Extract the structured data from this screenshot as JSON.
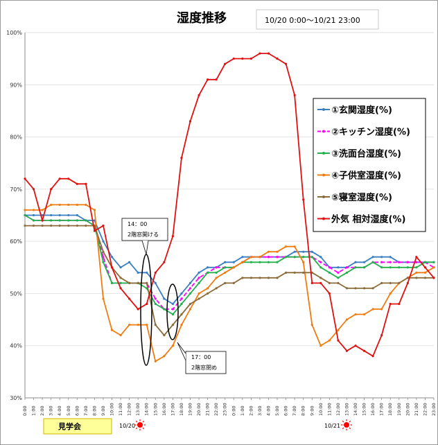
{
  "chart_data": {
    "type": "line",
    "title": "湿度推移",
    "subtitle": "10/20 0:00～10/21 23:00",
    "ylim": [
      30,
      100
    ],
    "yticks": [
      "30%",
      "40%",
      "50%",
      "60%",
      "70%",
      "80%",
      "90%",
      "100%"
    ],
    "x": [
      "0:00",
      "1:00",
      "2:00",
      "3:00",
      "4:00",
      "5:00",
      "6:00",
      "7:00",
      "8:00",
      "9:00",
      "10:00",
      "11:00",
      "12:00",
      "13:00",
      "14:00",
      "15:00",
      "16:00",
      "17:00",
      "18:00",
      "19:00",
      "20:00",
      "21:00",
      "22:00",
      "23:00",
      "0:00",
      "1:00",
      "2:00",
      "3:00",
      "4:00",
      "5:00",
      "6:00",
      "7:00",
      "8:00",
      "9:00",
      "10:00",
      "11:00",
      "12:00",
      "13:00",
      "14:00",
      "15:00",
      "16:00",
      "17:00",
      "18:00",
      "19:00",
      "20:00",
      "21:00",
      "22:00",
      "23:00"
    ],
    "legend_position": "right",
    "series": [
      {
        "name": "①玄関湿度(%)",
        "color": "#3a7fc1",
        "values": [
          65,
          65,
          65,
          65,
          65,
          65,
          65,
          64,
          64,
          60,
          57,
          55,
          56,
          54,
          54,
          52,
          49,
          48,
          50,
          52,
          54,
          55,
          55,
          56,
          56,
          57,
          57,
          57,
          57,
          57,
          57,
          58,
          58,
          58,
          57,
          55,
          55,
          55,
          56,
          56,
          57,
          57,
          57,
          56,
          56,
          56,
          56,
          56
        ]
      },
      {
        "name": "②キッチン湿度(%)",
        "color": "#ff00ff",
        "values": [
          65,
          64,
          64,
          64,
          64,
          64,
          64,
          64,
          63,
          57,
          52,
          52,
          52,
          52,
          52,
          49,
          47,
          47,
          49,
          51,
          53,
          54,
          55,
          55,
          55,
          56,
          57,
          57,
          57,
          57,
          57,
          57,
          57,
          57,
          56,
          55,
          54,
          55,
          55,
          55,
          56,
          56,
          56,
          56,
          56,
          56,
          56,
          55
        ]
      },
      {
        "name": "③洗面台湿度(%)",
        "color": "#22b14c",
        "values": [
          65,
          64,
          64,
          64,
          64,
          64,
          64,
          64,
          63,
          56,
          52,
          52,
          52,
          52,
          51,
          48,
          47,
          46,
          48,
          50,
          52,
          54,
          54,
          55,
          55,
          56,
          56,
          56,
          56,
          56,
          57,
          57,
          57,
          57,
          55,
          54,
          53,
          54,
          55,
          55,
          56,
          55,
          55,
          55,
          55,
          55,
          56,
          56
        ]
      },
      {
        "name": "④子供室湿度(%)",
        "color": "#f07c10",
        "values": [
          66,
          66,
          66,
          67,
          67,
          67,
          67,
          67,
          66,
          49,
          43,
          42,
          44,
          44,
          44,
          37,
          38,
          40,
          44,
          47,
          50,
          51,
          53,
          54,
          55,
          56,
          57,
          57,
          58,
          58,
          59,
          59,
          56,
          44,
          40,
          41,
          43,
          45,
          46,
          46,
          47,
          47,
          50,
          52,
          53,
          54,
          54,
          55
        ]
      },
      {
        "name": "⑤寝室湿度(%)",
        "color": "#8b6b3a",
        "values": [
          63,
          63,
          63,
          63,
          63,
          63,
          63,
          63,
          63,
          58,
          55,
          53,
          52,
          52,
          52,
          44,
          42,
          44,
          46,
          48,
          49,
          50,
          51,
          52,
          52,
          53,
          53,
          53,
          53,
          53,
          54,
          54,
          54,
          54,
          53,
          52,
          52,
          51,
          51,
          51,
          51,
          52,
          52,
          52,
          53,
          53,
          53,
          53
        ]
      },
      {
        "name": "外気 相対湿度(%)",
        "color": "#e01010",
        "values": [
          72,
          70,
          64,
          70,
          72,
          72,
          71,
          71,
          62,
          63,
          55,
          51,
          49,
          47,
          48,
          54,
          56,
          61,
          76,
          83,
          88,
          91,
          91,
          94,
          95,
          95,
          95,
          96,
          96,
          95,
          94,
          88,
          68,
          52,
          52,
          50,
          41,
          39,
          40,
          39,
          38,
          42,
          48,
          48,
          52,
          57,
          55,
          53
        ]
      }
    ],
    "annotations": {
      "callout_1": [
        "14：00",
        "2階窓開ける"
      ],
      "callout_2": [
        "17：00",
        "2階窓閉め"
      ],
      "visit_label": "見学会",
      "day1_label": "10/20",
      "day2_label": "10/21"
    }
  }
}
